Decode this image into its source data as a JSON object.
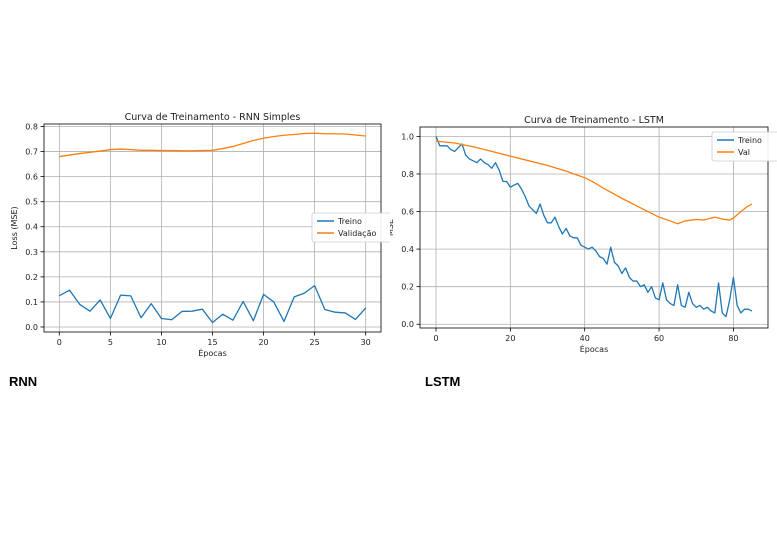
{
  "labels": {
    "left": "RNN",
    "right": "LSTM"
  },
  "chart_data": [
    {
      "type": "line",
      "title": "Curva de Treinamento - RNN Simples",
      "xlabel": "Épocas",
      "ylabel": "Loss (MSE)",
      "xlim": [
        -1.5,
        31.5
      ],
      "ylim": [
        -0.02,
        0.81
      ],
      "xticks": [
        0,
        5,
        10,
        15,
        20,
        25,
        30
      ],
      "yticks": [
        0.0,
        0.1,
        0.2,
        0.3,
        0.4,
        0.5,
        0.6,
        0.7,
        0.8
      ],
      "ytick_decimals": 1,
      "grid": true,
      "legend": "center-right",
      "series": [
        {
          "name": "Treino",
          "color": "#1f77b4",
          "x": [
            0,
            1,
            2,
            3,
            4,
            5,
            6,
            7,
            8,
            9,
            10,
            11,
            12,
            13,
            14,
            15,
            16,
            17,
            18,
            19,
            20,
            21,
            22,
            23,
            24,
            25,
            26,
            27,
            28,
            29,
            30
          ],
          "y": [
            0.125,
            0.147,
            0.09,
            0.063,
            0.108,
            0.034,
            0.127,
            0.124,
            0.037,
            0.093,
            0.034,
            0.029,
            0.062,
            0.063,
            0.071,
            0.018,
            0.051,
            0.027,
            0.102,
            0.025,
            0.13,
            0.1,
            0.022,
            0.12,
            0.135,
            0.165,
            0.07,
            0.059,
            0.056,
            0.03,
            0.076
          ]
        },
        {
          "name": "Validação",
          "color": "#ff7f0e",
          "x": [
            0,
            1,
            2,
            3,
            4,
            5,
            6,
            7,
            8,
            9,
            10,
            11,
            12,
            13,
            14,
            15,
            16,
            17,
            18,
            19,
            20,
            21,
            22,
            23,
            24,
            25,
            26,
            27,
            28,
            29,
            30
          ],
          "y": [
            0.68,
            0.686,
            0.692,
            0.697,
            0.702,
            0.708,
            0.71,
            0.708,
            0.705,
            0.705,
            0.704,
            0.704,
            0.703,
            0.703,
            0.704,
            0.705,
            0.712,
            0.72,
            0.732,
            0.744,
            0.753,
            0.76,
            0.765,
            0.768,
            0.772,
            0.773,
            0.771,
            0.771,
            0.77,
            0.766,
            0.762
          ]
        }
      ]
    },
    {
      "type": "line",
      "title": "Curva de Treinamento - LSTM",
      "xlabel": "Épocas",
      "ylabel": "MSE",
      "xlim": [
        -4.3,
        89.3
      ],
      "ylim": [
        -0.02,
        1.05
      ],
      "xticks": [
        0,
        20,
        40,
        60,
        80
      ],
      "yticks": [
        0.0,
        0.2,
        0.4,
        0.6,
        0.8,
        1.0
      ],
      "ytick_decimals": 1,
      "grid": true,
      "legend": "top-right",
      "series": [
        {
          "name": "Treino",
          "color": "#1f77b4",
          "x": [
            0,
            1,
            2,
            3,
            4,
            5,
            6,
            7,
            8,
            9,
            10,
            11,
            12,
            13,
            14,
            15,
            16,
            17,
            18,
            19,
            20,
            21,
            22,
            23,
            24,
            25,
            26,
            27,
            28,
            29,
            30,
            31,
            32,
            33,
            34,
            35,
            36,
            37,
            38,
            39,
            40,
            41,
            42,
            43,
            44,
            45,
            46,
            47,
            48,
            49,
            50,
            51,
            52,
            53,
            54,
            55,
            56,
            57,
            58,
            59,
            60,
            61,
            62,
            63,
            64,
            65,
            66,
            67,
            68,
            69,
            70,
            71,
            72,
            73,
            74,
            75,
            76,
            77,
            78,
            79,
            80,
            81,
            82,
            83,
            84,
            85
          ],
          "y": [
            1.0,
            0.95,
            0.95,
            0.95,
            0.93,
            0.92,
            0.94,
            0.96,
            0.9,
            0.88,
            0.87,
            0.86,
            0.88,
            0.86,
            0.85,
            0.83,
            0.86,
            0.82,
            0.76,
            0.76,
            0.73,
            0.74,
            0.75,
            0.72,
            0.68,
            0.63,
            0.61,
            0.59,
            0.64,
            0.58,
            0.54,
            0.54,
            0.57,
            0.52,
            0.48,
            0.51,
            0.47,
            0.46,
            0.46,
            0.42,
            0.41,
            0.4,
            0.41,
            0.39,
            0.36,
            0.35,
            0.32,
            0.41,
            0.33,
            0.31,
            0.27,
            0.3,
            0.25,
            0.23,
            0.23,
            0.2,
            0.21,
            0.17,
            0.2,
            0.14,
            0.13,
            0.22,
            0.13,
            0.11,
            0.1,
            0.21,
            0.1,
            0.09,
            0.17,
            0.11,
            0.09,
            0.1,
            0.08,
            0.09,
            0.07,
            0.06,
            0.22,
            0.06,
            0.04,
            0.13,
            0.25,
            0.1,
            0.06,
            0.08,
            0.08,
            0.07
          ]
        },
        {
          "name": "Val",
          "color": "#ff7f0e",
          "x": [
            0,
            5,
            10,
            15,
            20,
            25,
            30,
            35,
            40,
            42,
            45,
            50,
            55,
            58,
            60,
            63,
            65,
            67,
            70,
            72,
            75,
            77,
            79,
            80,
            82,
            84,
            85
          ],
          "y": [
            0.975,
            0.965,
            0.945,
            0.92,
            0.895,
            0.87,
            0.845,
            0.815,
            0.78,
            0.76,
            0.725,
            0.67,
            0.62,
            0.59,
            0.57,
            0.55,
            0.535,
            0.55,
            0.558,
            0.555,
            0.57,
            0.56,
            0.555,
            0.565,
            0.6,
            0.63,
            0.64
          ]
        }
      ]
    }
  ]
}
